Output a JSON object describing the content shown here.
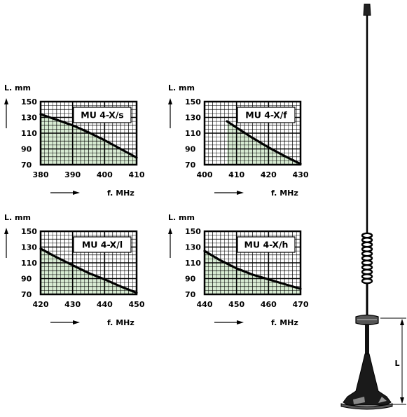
{
  "colors": {
    "fill": "#d7ebd2",
    "grid": "#000000",
    "curve": "#000000"
  },
  "chart_data": [
    {
      "type": "area",
      "title": "MU 4-X/s",
      "ylabel": "L. mm",
      "xlabel": "f. MHz",
      "x_ticks": [
        "380",
        "390",
        "400",
        "410"
      ],
      "y_ticks": [
        "150",
        "130",
        "110",
        "90",
        "70"
      ],
      "xlim": [
        380,
        410
      ],
      "ylim": [
        70,
        150
      ],
      "grid": true,
      "x": [
        380,
        385,
        390,
        395,
        400,
        405,
        410
      ],
      "y": [
        134,
        127,
        120,
        111,
        101,
        90,
        79
      ]
    },
    {
      "type": "area",
      "title": "MU 4-X/f",
      "ylabel": "L. mm",
      "xlabel": "f. MHz",
      "x_ticks": [
        "400",
        "410",
        "420",
        "430"
      ],
      "y_ticks": [
        "150",
        "130",
        "110",
        "90",
        "70"
      ],
      "xlim": [
        400,
        430
      ],
      "ylim": [
        70,
        150
      ],
      "grid": true,
      "x": [
        407,
        410,
        415,
        420,
        425,
        430
      ],
      "y": [
        125,
        117,
        104,
        92,
        81,
        71
      ]
    },
    {
      "type": "area",
      "title": "MU 4-X/l",
      "ylabel": "L. mm",
      "xlabel": "f. MHz",
      "x_ticks": [
        "420",
        "430",
        "440",
        "450"
      ],
      "y_ticks": [
        "150",
        "130",
        "110",
        "90",
        "70"
      ],
      "xlim": [
        420,
        450
      ],
      "ylim": [
        70,
        150
      ],
      "grid": true,
      "x": [
        420,
        425,
        430,
        435,
        440,
        445,
        450
      ],
      "y": [
        128,
        117,
        107,
        97,
        89,
        80,
        72
      ]
    },
    {
      "type": "area",
      "title": "MU 4-X/h",
      "ylabel": "L. mm",
      "xlabel": "f. MHz",
      "x_ticks": [
        "440",
        "450",
        "460",
        "470"
      ],
      "y_ticks": [
        "150",
        "130",
        "110",
        "90",
        "70"
      ],
      "xlim": [
        440,
        470
      ],
      "ylim": [
        70,
        150
      ],
      "grid": true,
      "x": [
        440,
        445,
        450,
        455,
        460,
        465,
        470
      ],
      "y": [
        125,
        113,
        103,
        95,
        89,
        83,
        77
      ]
    }
  ],
  "antenna": {
    "dimension_label": "L"
  }
}
